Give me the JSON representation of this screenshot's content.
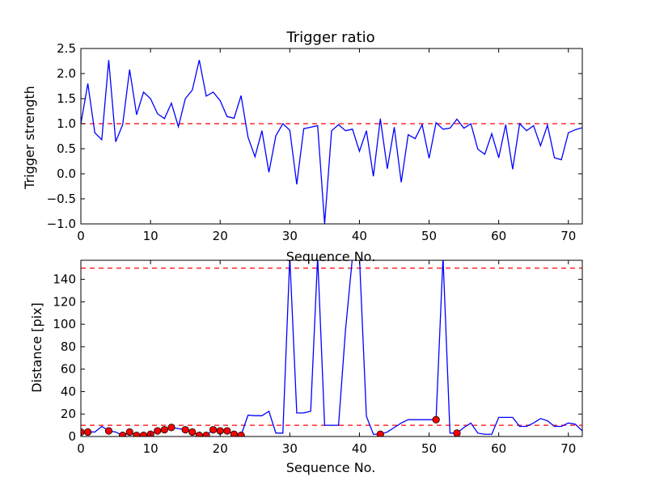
{
  "chart_data": [
    {
      "type": "line",
      "title": "Trigger ratio",
      "xlabel": "Sequence No.",
      "ylabel": "Trigger strength",
      "xlim": [
        0,
        72
      ],
      "ylim": [
        -1.0,
        2.5
      ],
      "xticks": [
        "0",
        "10",
        "20",
        "30",
        "40",
        "50",
        "60",
        "70"
      ],
      "yticks": [
        "−1.0",
        "−0.5",
        "0.0",
        "0.5",
        "1.0",
        "1.5",
        "2.0",
        "2.5"
      ],
      "grid": false,
      "colors": {
        "line": "#0000ff",
        "threshold": "#ff0000"
      },
      "threshold": 1.0,
      "series": [
        {
          "x": [
            0,
            1,
            2,
            3,
            4,
            5,
            6,
            7,
            8,
            9,
            10,
            11,
            12,
            13,
            14,
            15,
            16,
            17,
            18,
            19,
            20,
            21,
            22,
            23,
            24,
            25,
            26,
            27,
            28,
            29,
            30,
            31,
            32,
            33,
            34,
            35,
            36,
            37,
            38,
            39,
            40,
            41,
            42,
            43,
            44,
            45,
            46,
            47,
            48,
            49,
            50,
            51,
            52,
            53,
            54,
            55,
            56,
            57,
            58,
            59,
            60,
            61,
            62,
            63,
            64,
            65,
            66,
            67,
            68,
            69,
            70,
            71,
            72
          ],
          "values": [
            1.0,
            1.8,
            0.82,
            0.68,
            2.27,
            0.64,
            0.98,
            2.08,
            1.18,
            1.63,
            1.5,
            1.2,
            1.1,
            1.41,
            0.94,
            1.5,
            1.67,
            2.27,
            1.55,
            1.63,
            1.46,
            1.14,
            1.11,
            1.56,
            0.73,
            0.34,
            0.86,
            0.03,
            0.76,
            1.0,
            0.87,
            -0.21,
            0.9,
            0.93,
            0.96,
            -1.0,
            0.86,
            0.98,
            0.86,
            0.89,
            0.45,
            0.86,
            -0.05,
            1.1,
            0.1,
            0.93,
            -0.17,
            0.78,
            0.7,
            0.98,
            0.31,
            1.02,
            0.89,
            0.91,
            1.09,
            0.91,
            1.0,
            0.49,
            0.39,
            0.8,
            0.32,
            0.98,
            0.09,
            1.0,
            0.86,
            0.96,
            0.56,
            0.97,
            0.32,
            0.28,
            0.82,
            0.88,
            0.92
          ]
        }
      ]
    },
    {
      "type": "line",
      "xlabel": "Sequence No.",
      "ylabel": "Distance [pix]",
      "xlim": [
        0,
        72
      ],
      "ylim": [
        0,
        157
      ],
      "xticks": [
        "0",
        "10",
        "20",
        "30",
        "40",
        "50",
        "60",
        "70"
      ],
      "yticks": [
        "0",
        "20",
        "40",
        "60",
        "80",
        "100",
        "120",
        "140"
      ],
      "grid": false,
      "colors": {
        "line": "#0000ff",
        "threshold": "#ff0000",
        "markers": "#ff0000",
        "marker_edge": "#000000"
      },
      "thresholds": [
        150,
        10
      ],
      "series": [
        {
          "x": [
            0,
            1,
            2,
            3,
            4,
            5,
            6,
            7,
            8,
            9,
            10,
            11,
            12,
            13,
            14,
            15,
            16,
            17,
            18,
            19,
            20,
            21,
            22,
            23,
            24,
            25,
            26,
            27,
            28,
            29,
            30,
            31,
            32,
            33,
            34,
            35,
            36,
            37,
            38,
            39,
            40,
            41,
            42,
            43,
            44,
            45,
            46,
            47,
            48,
            49,
            50,
            51,
            52,
            53,
            54,
            55,
            56,
            57,
            58,
            59,
            60,
            61,
            62,
            63,
            64,
            65,
            66,
            67,
            68,
            69,
            70,
            71,
            72
          ],
          "values": [
            4,
            4,
            4,
            9,
            5,
            4,
            1,
            4,
            1,
            1,
            2,
            5,
            6,
            8,
            7,
            6,
            4,
            1,
            1,
            6,
            5,
            5,
            2,
            1,
            19,
            18.5,
            18.5,
            22.5,
            3,
            3,
            160,
            21,
            21,
            22.5,
            160,
            10,
            10,
            10,
            95,
            160,
            160,
            18,
            2,
            2,
            4,
            8,
            12,
            15,
            15,
            15,
            15,
            15,
            160,
            3,
            3,
            8,
            12,
            3,
            2,
            2,
            17,
            17,
            17,
            9,
            9,
            12,
            16,
            14,
            9,
            9,
            12,
            11,
            5
          ]
        }
      ],
      "markers": {
        "x": [
          0,
          1,
          4,
          6,
          7,
          8,
          9,
          10,
          11,
          12,
          13,
          15,
          16,
          17,
          18,
          19,
          20,
          21,
          22,
          23,
          43,
          51,
          54
        ],
        "y": [
          4,
          4,
          5,
          1,
          4,
          1,
          1,
          2,
          5,
          6,
          8,
          6,
          4,
          1,
          1,
          6,
          5,
          5,
          2,
          1,
          2,
          15,
          3
        ]
      }
    }
  ]
}
